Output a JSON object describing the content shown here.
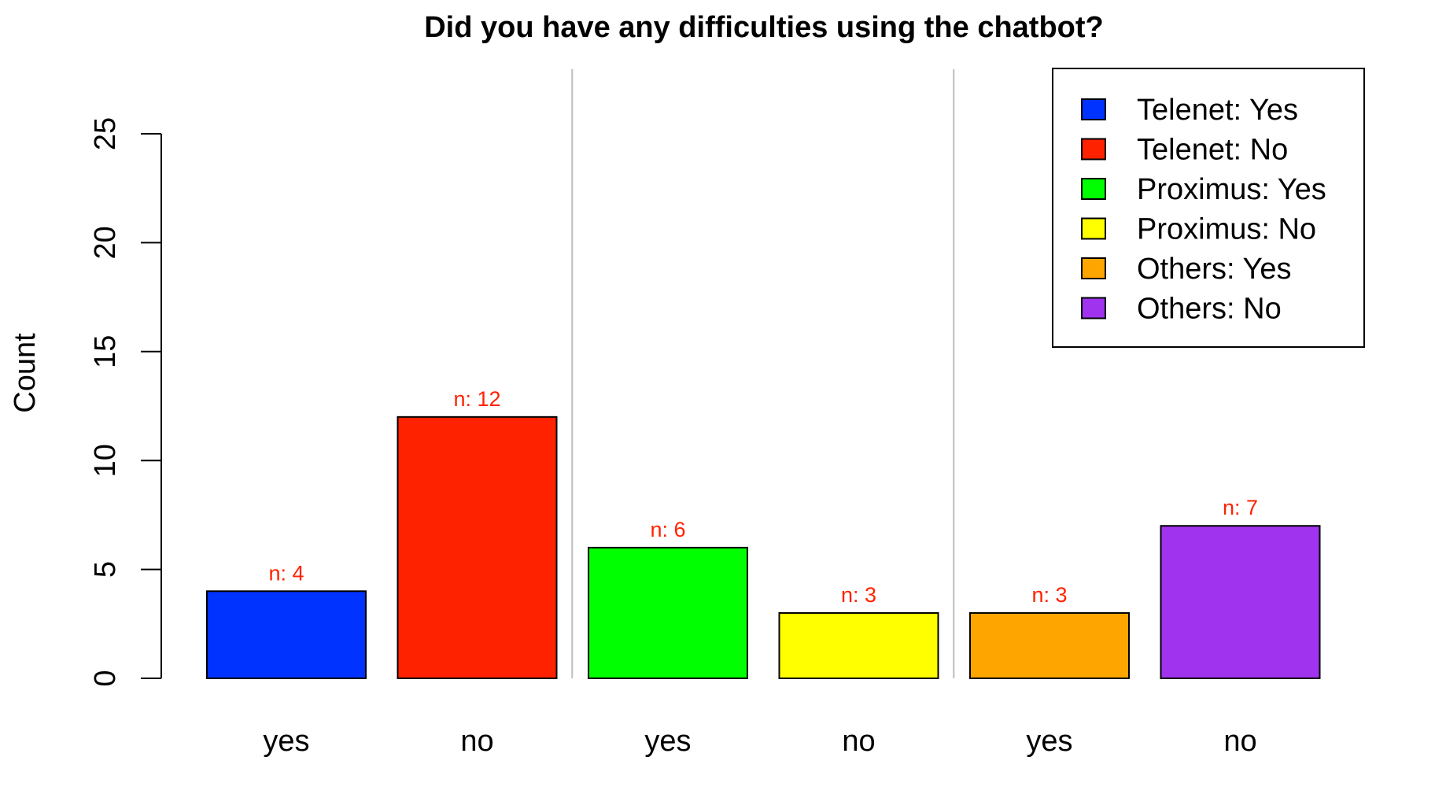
{
  "chart_data": {
    "type": "bar",
    "title": "Did you have any difficulties using the chatbot?",
    "xlabel": "",
    "ylabel": "Count",
    "ylim": [
      0,
      25
    ],
    "yticks": [
      0,
      5,
      10,
      15,
      20,
      25
    ],
    "grid": false,
    "legend_position": "top-right",
    "group_separators": true,
    "bars": [
      {
        "category": "yes",
        "series": "Telenet: Yes",
        "value": 4,
        "label": "n: 4",
        "color": "#0033FF"
      },
      {
        "category": "no",
        "series": "Telenet: No",
        "value": 12,
        "label": "n: 12",
        "color": "#FF2200"
      },
      {
        "category": "yes",
        "series": "Proximus: Yes",
        "value": 6,
        "label": "n: 6",
        "color": "#00FF00"
      },
      {
        "category": "no",
        "series": "Proximus: No",
        "value": 3,
        "label": "n: 3",
        "color": "#FFFF00"
      },
      {
        "category": "yes",
        "series": "Others: Yes",
        "value": 3,
        "label": "n: 3",
        "color": "#FFA500"
      },
      {
        "category": "no",
        "series": "Others: No",
        "value": 7,
        "label": "n: 7",
        "color": "#A033EE"
      }
    ],
    "legend": [
      {
        "label": "Telenet: Yes",
        "color": "#0033FF"
      },
      {
        "label": "Telenet: No",
        "color": "#FF2200"
      },
      {
        "label": "Proximus: Yes",
        "color": "#00FF00"
      },
      {
        "label": "Proximus: No",
        "color": "#FFFF00"
      },
      {
        "label": "Others: Yes",
        "color": "#FFA500"
      },
      {
        "label": "Others: No",
        "color": "#A033EE"
      }
    ],
    "data_label_color": "#FF2200",
    "separator_color": "#BEBEBE"
  }
}
